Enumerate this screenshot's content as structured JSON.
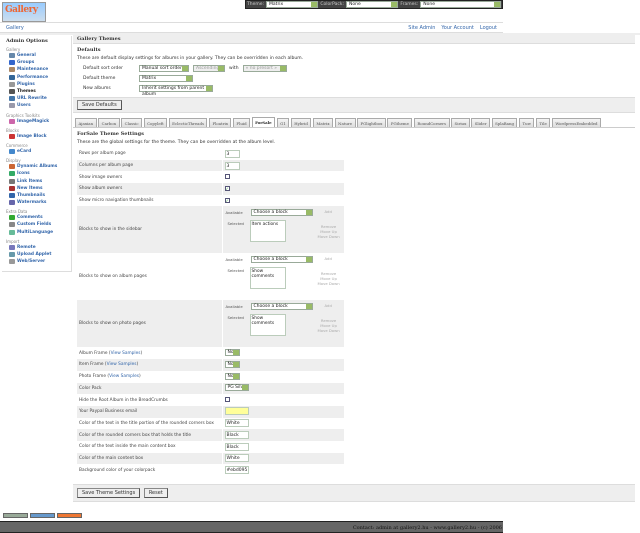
{
  "topbar": {
    "theme_label": "Theme:",
    "theme_value": "Matrix",
    "colorpack_label": "ColorPack:",
    "colorpack_value": "None",
    "frames_label": "Frames:",
    "frames_value": "None"
  },
  "logo": "Gallery",
  "breadcrumb": "Gallery",
  "header_links": [
    "Site Admin",
    "Your Account",
    "Logout"
  ],
  "sidebar": {
    "title": "Admin Options",
    "groups": [
      {
        "name": "Gallery",
        "items": [
          {
            "label": "General",
            "icon": "general-icon"
          },
          {
            "label": "Groups",
            "icon": "groups-icon"
          },
          {
            "label": "Maintenance",
            "icon": "maintenance-icon"
          },
          {
            "label": "Performance",
            "icon": "performance-icon"
          },
          {
            "label": "Plugins",
            "icon": "plugins-icon"
          },
          {
            "label": "Themes",
            "icon": "themes-icon",
            "current": true
          },
          {
            "label": "URL Rewrite",
            "icon": "url-rewrite-icon"
          },
          {
            "label": "Users",
            "icon": "users-icon"
          }
        ]
      },
      {
        "name": "Graphics Toolkits",
        "items": [
          {
            "label": "ImageMagick",
            "icon": "imagemagick-icon"
          }
        ]
      },
      {
        "name": "Blocks",
        "items": [
          {
            "label": "Image Block",
            "icon": "image-block-icon"
          }
        ]
      },
      {
        "name": "Commerce",
        "items": [
          {
            "label": "eCard",
            "icon": "ecard-icon"
          }
        ]
      },
      {
        "name": "Display",
        "items": [
          {
            "label": "Dynamic Albums",
            "icon": "dynamic-albums-icon"
          },
          {
            "label": "Icons",
            "icon": "icons-icon"
          },
          {
            "label": "Link Items",
            "icon": "link-items-icon"
          },
          {
            "label": "New Items",
            "icon": "new-items-icon"
          },
          {
            "label": "Thumbnails",
            "icon": "thumbnails-icon"
          },
          {
            "label": "Watermarks",
            "icon": "watermarks-icon"
          }
        ]
      },
      {
        "name": "Extra Data",
        "items": [
          {
            "label": "Comments",
            "icon": "comments-icon"
          },
          {
            "label": "Custom Fields",
            "icon": "custom-fields-icon"
          },
          {
            "label": "MultiLanguage",
            "icon": "multilanguage-icon"
          }
        ]
      },
      {
        "name": "Import",
        "items": [
          {
            "label": "Remote",
            "icon": "remote-icon"
          },
          {
            "label": "Upload Applet",
            "icon": "upload-applet-icon"
          },
          {
            "label": "Web/Server",
            "icon": "web-server-icon"
          }
        ]
      }
    ]
  },
  "main": {
    "title": "Gallery Themes",
    "defaults_heading": "Defaults",
    "defaults_desc": "These are default display settings for albums in your gallery. They can be overridden in each album.",
    "sort_label": "Default sort order",
    "sort_value": "Manual sort order",
    "sort_dir": "Ascending",
    "with_label": "with",
    "presort": "« no presort »",
    "theme_label": "Default theme",
    "theme_value": "Matrix",
    "new_albums_label": "New albums",
    "new_albums_value": "Inherit settings from parent album",
    "save_defaults": "Save Defaults",
    "tabs": [
      "Ajaxian",
      "Carbon",
      "Classic",
      "Copyleft",
      "EclecticThreads",
      "Floatrix",
      "Fluid",
      "ForSale",
      "G1",
      "Hybrid",
      "Matrix",
      "Nature",
      "PGlightbox",
      "PGtheme",
      "RoundCorners",
      "Siriux",
      "Slider",
      "SplaBang",
      "Tuw",
      "Tile",
      "WordpressEmbedded"
    ],
    "active_tab": "ForSale",
    "settings_heading": "ForSale Theme Settings",
    "settings_desc": "These are the global settings for the theme. They can be overridden at the album level.",
    "rows_label": "Rows per album page",
    "rows_value": "3",
    "cols_label": "Columns per album page",
    "cols_value": "3",
    "show_image_owners": {
      "label": "Show image owners",
      "checked": false
    },
    "show_album_owners": {
      "label": "Show album owners",
      "checked": true
    },
    "show_micro": {
      "label": "Show micro navigation thumbnails",
      "checked": true
    },
    "block_labels": {
      "available": "Available",
      "selected": "Selected",
      "choose": "Choose a block",
      "add": "Add",
      "remove": "Remove",
      "move_up": "Move Up",
      "move_down": "Move Down"
    },
    "blocks": [
      {
        "label": "Blocks to show in the sidebar",
        "selected": "Item actions"
      },
      {
        "label": "Blocks to show on album pages",
        "selected": "Show comments"
      },
      {
        "label": "Blocks to show on photo pages",
        "selected": "Show comments"
      }
    ],
    "view_samples": "View Samples",
    "album_frame_label": "Album Frame",
    "album_frame": "None",
    "item_frame_label": "Item Frame",
    "item_frame": "None",
    "photo_frame_label": "Photo Frame",
    "photo_frame": "None",
    "colorpack_label": "Color Pack",
    "colorpack": "PG Silver",
    "hide_root": {
      "label": "Hide the Root Album in the BreadCrumbs",
      "checked": false
    },
    "paypal_label": "Your Paypal Business email",
    "paypal_value": "",
    "colors": [
      {
        "label": "Color of the text in the title portion of the rounded corners box",
        "value": "White"
      },
      {
        "label": "Color of the rounded corners box that holds the title",
        "value": "Black"
      },
      {
        "label": "Color of the text inside the main content box",
        "value": "Black"
      },
      {
        "label": "Color of the main content box",
        "value": "White"
      },
      {
        "label": "Background color of your colorpack",
        "value": "#ebd095"
      }
    ],
    "save_theme": "Save Theme Settings",
    "reset": "Reset"
  },
  "footer": "Contact: admin at gallery2.hu - www.gallery2.hu - (c) 2006",
  "accent": "#3366aa"
}
